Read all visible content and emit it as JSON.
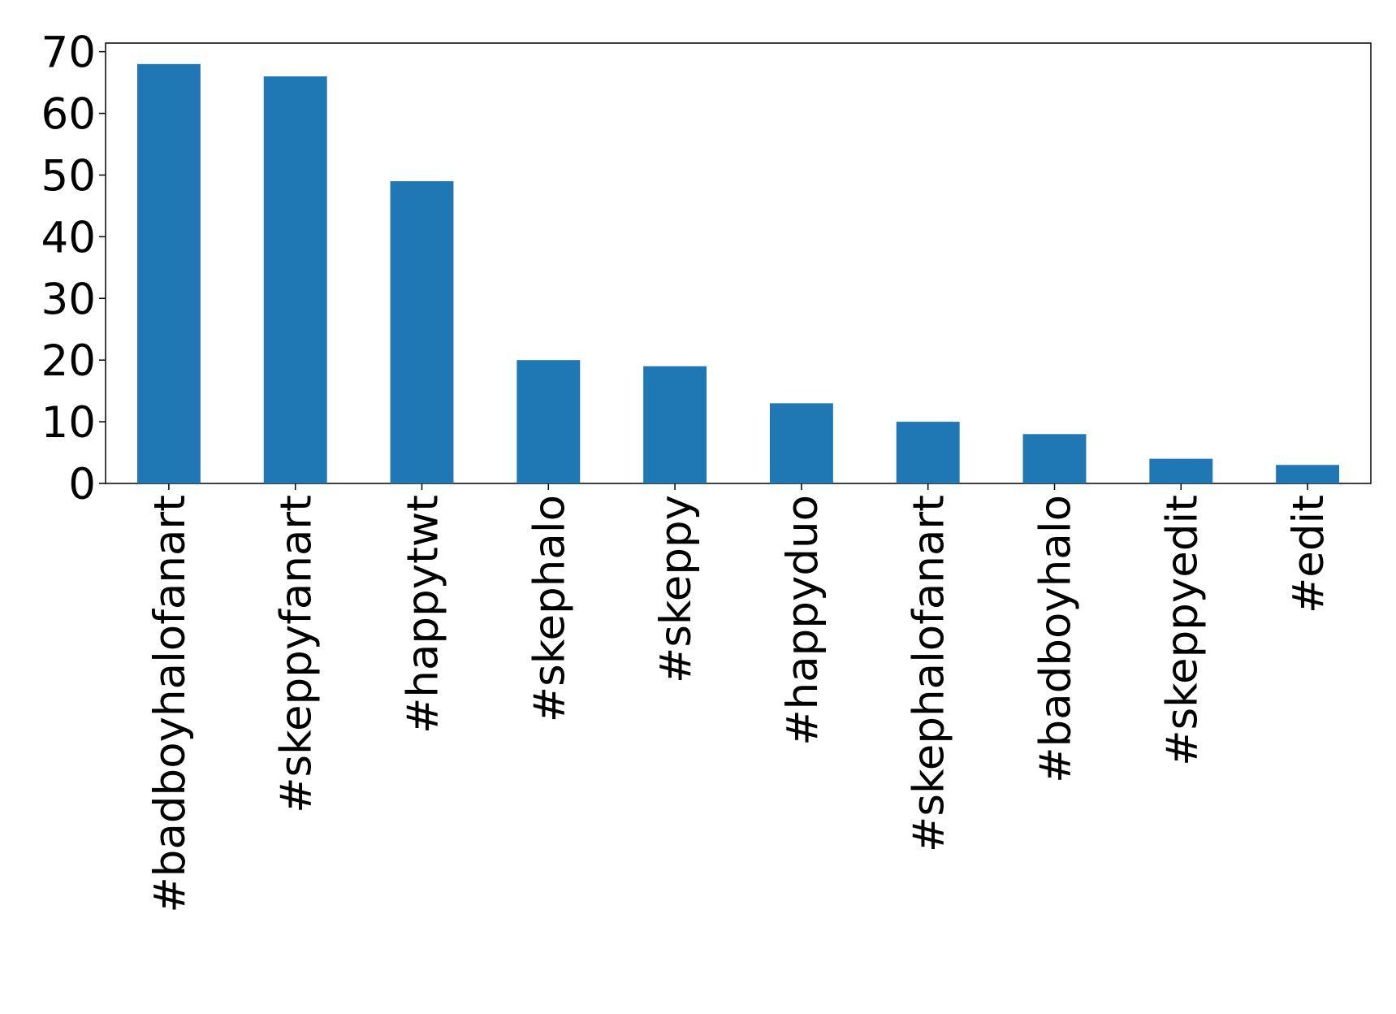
{
  "chart_data": {
    "type": "bar",
    "categories": [
      "#badboyhalofanart",
      "#skeppyfanart",
      "#happytwt",
      "#skephalo",
      "#skeppy",
      "#happyduo",
      "#skephalofanart",
      "#badboyhalo",
      "#skeppyedit",
      "#edit"
    ],
    "values": [
      68,
      66,
      49,
      20,
      19,
      13,
      10,
      8,
      4,
      3
    ],
    "color": "#1f77b4",
    "ylim": [
      0,
      71.4
    ],
    "yticks": [
      0,
      10,
      20,
      30,
      40,
      50,
      60,
      70
    ],
    "grid": false
  }
}
